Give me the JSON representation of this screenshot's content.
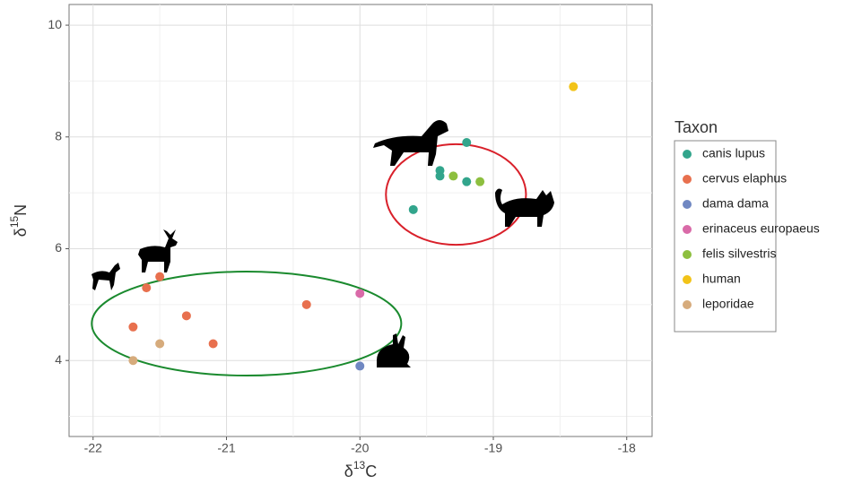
{
  "chart_data": {
    "type": "scatter",
    "xlabel": {
      "base": "δ",
      "sup": "13",
      "tail": "C"
    },
    "ylabel": {
      "base": "δ",
      "sup": "15",
      "tail": "N"
    },
    "xlim": [
      -22.18,
      -17.81
    ],
    "ylim": [
      2.64,
      10.37
    ],
    "xticks": [
      -22,
      -21,
      -20,
      -19,
      -18
    ],
    "yticks": [
      4,
      6,
      8,
      10
    ],
    "grid": true,
    "legend_title": "Taxon",
    "legend": "right",
    "series": [
      {
        "name": "canis lupus",
        "color": "#32a58c",
        "x": [
          -19.2,
          -19.4,
          -19.4,
          -19.2,
          -19.6
        ],
        "values": [
          7.9,
          7.4,
          7.3,
          7.2,
          6.7
        ]
      },
      {
        "name": "cervus elaphus",
        "color": "#e8704e",
        "x": [
          -21.5,
          -21.6,
          -21.3,
          -21.7,
          -21.1,
          -20.4
        ],
        "values": [
          5.5,
          5.3,
          4.8,
          4.6,
          4.3,
          5.0
        ]
      },
      {
        "name": "dama dama",
        "color": "#7088c2",
        "x": [
          -20.0
        ],
        "values": [
          3.9
        ]
      },
      {
        "name": "erinaceus europaeus",
        "color": "#d96aa8",
        "x": [
          -20.0
        ],
        "values": [
          5.2
        ]
      },
      {
        "name": "felis silvestris",
        "color": "#8dbf3f",
        "x": [
          -19.3,
          -19.1
        ],
        "values": [
          7.3,
          7.2
        ]
      },
      {
        "name": "human",
        "color": "#f2c318",
        "x": [
          -18.4
        ],
        "values": [
          8.9
        ]
      },
      {
        "name": "leporidae",
        "color": "#d6ab7c",
        "x": [
          -21.5,
          -21.7
        ],
        "values": [
          4.3,
          4.0
        ]
      }
    ],
    "ellipses": [
      {
        "color": "#d9202a",
        "cx": -19.28,
        "cy": 6.97,
        "rx": 0.525,
        "ry": 0.9
      },
      {
        "color": "#1a8a2e",
        "cx": -20.85,
        "cy": 4.66,
        "rx": 1.16,
        "ry": 0.93
      }
    ]
  }
}
